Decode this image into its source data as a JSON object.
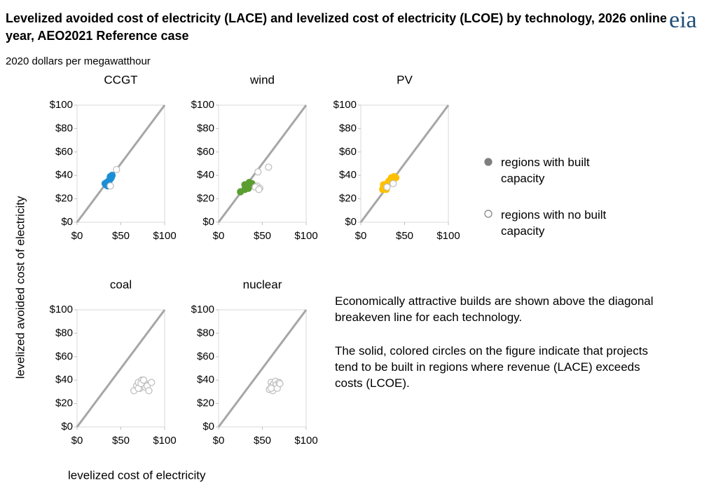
{
  "title": "Levelized avoided cost of electricity (LACE) and levelized cost of electricity (LCOE) by technology, 2026 online year, AEO2021 Reference case",
  "logo": "eia",
  "subtitle": "2020 dollars per megawatthour",
  "y_label": "levelized avoided cost of electricity",
  "x_label": "levelized cost of electricity",
  "legend": [
    {
      "label": "regions with built capacity",
      "color": "#7f7f7f",
      "filled": true
    },
    {
      "label": "regions with no built capacity",
      "color": "#7f7f7f",
      "filled": false
    }
  ],
  "notes": [
    "Economically attractive builds are shown above the diagonal breakeven line for each technology.",
    "The solid, colored circles on the figure indicate that projects tend to be built in regions where revenue (LACE) exceeds costs (LCOE)."
  ],
  "chart_data": [
    {
      "type": "scatter",
      "title": "CCGT",
      "xlim": [
        0,
        100
      ],
      "ylim": [
        0,
        100
      ],
      "xticks": [
        {
          "value": 0,
          "label": "$0"
        },
        {
          "value": 50,
          "label": "$50"
        },
        {
          "value": 100,
          "label": "$100"
        }
      ],
      "yticks": [
        {
          "value": 0,
          "label": "$0"
        },
        {
          "value": 20,
          "label": "$20"
        },
        {
          "value": 40,
          "label": "$40"
        },
        {
          "value": 60,
          "label": "$60"
        },
        {
          "value": 80,
          "label": "$80"
        },
        {
          "value": 100,
          "label": "$100"
        }
      ],
      "series": [
        {
          "color": "#1b8fd6",
          "filled": true,
          "x": [
            32,
            33,
            34,
            35,
            36,
            37,
            38,
            39,
            40,
            38,
            36,
            35
          ],
          "y": [
            33,
            32,
            34,
            33,
            35,
            36,
            37,
            38,
            40,
            39,
            32,
            31
          ]
        },
        {
          "color": "#c0c0c0",
          "filled": false,
          "x": [
            45,
            38
          ],
          "y": [
            45,
            31
          ]
        }
      ]
    },
    {
      "type": "scatter",
      "title": "wind",
      "xlim": [
        0,
        100
      ],
      "ylim": [
        0,
        100
      ],
      "xticks": [
        {
          "value": 0,
          "label": "$0"
        },
        {
          "value": 50,
          "label": "$50"
        },
        {
          "value": 100,
          "label": "$100"
        }
      ],
      "yticks": [
        {
          "value": 0,
          "label": "$0"
        },
        {
          "value": 20,
          "label": "$20"
        },
        {
          "value": 40,
          "label": "$40"
        },
        {
          "value": 60,
          "label": "$60"
        },
        {
          "value": 80,
          "label": "$80"
        },
        {
          "value": 100,
          "label": "$100"
        }
      ],
      "series": [
        {
          "color": "#5a9e32",
          "filled": true,
          "x": [
            25,
            30,
            32,
            35,
            38,
            30,
            34
          ],
          "y": [
            26,
            28,
            32,
            34,
            33,
            32,
            29
          ]
        },
        {
          "color": "#c0c0c0",
          "filled": false,
          "x": [
            57,
            45,
            44,
            47,
            42,
            46
          ],
          "y": [
            47,
            43,
            31,
            29,
            30,
            28
          ]
        }
      ]
    },
    {
      "type": "scatter",
      "title": "PV",
      "xlim": [
        0,
        100
      ],
      "ylim": [
        0,
        100
      ],
      "xticks": [
        {
          "value": 0,
          "label": "$0"
        },
        {
          "value": 50,
          "label": "$50"
        },
        {
          "value": 100,
          "label": "$100"
        }
      ],
      "yticks": [
        {
          "value": 0,
          "label": "$0"
        },
        {
          "value": 20,
          "label": "$20"
        },
        {
          "value": 40,
          "label": "$40"
        },
        {
          "value": 60,
          "label": "$60"
        },
        {
          "value": 80,
          "label": "$80"
        },
        {
          "value": 100,
          "label": "$100"
        }
      ],
      "series": [
        {
          "color": "#ffc000",
          "filled": true,
          "x": [
            25,
            26,
            27,
            28,
            30,
            32,
            35,
            38,
            40,
            26,
            29
          ],
          "y": [
            28,
            30,
            29,
            31,
            33,
            35,
            38,
            39,
            38,
            32,
            28
          ]
        },
        {
          "color": "#c0c0c0",
          "filled": false,
          "x": [
            37,
            30
          ],
          "y": [
            33,
            30
          ]
        }
      ]
    },
    {
      "type": "scatter",
      "title": "coal",
      "xlim": [
        0,
        100
      ],
      "ylim": [
        0,
        100
      ],
      "xticks": [
        {
          "value": 0,
          "label": "$0"
        },
        {
          "value": 50,
          "label": "$50"
        },
        {
          "value": 100,
          "label": "$100"
        }
      ],
      "yticks": [
        {
          "value": 0,
          "label": "$0"
        },
        {
          "value": 20,
          "label": "$20"
        },
        {
          "value": 40,
          "label": "$40"
        },
        {
          "value": 60,
          "label": "$60"
        },
        {
          "value": 80,
          "label": "$80"
        },
        {
          "value": 100,
          "label": "$100"
        }
      ],
      "series": [
        {
          "color": "#c0c0c0",
          "filled": false,
          "x": [
            65,
            68,
            70,
            72,
            74,
            75,
            77,
            78,
            80,
            82,
            85,
            70,
            73,
            76
          ],
          "y": [
            31,
            35,
            38,
            33,
            40,
            36,
            38,
            34,
            35,
            31,
            38,
            33,
            37,
            40
          ]
        }
      ]
    },
    {
      "type": "scatter",
      "title": "nuclear",
      "xlim": [
        0,
        100
      ],
      "ylim": [
        0,
        100
      ],
      "xticks": [
        {
          "value": 0,
          "label": "$0"
        },
        {
          "value": 50,
          "label": "$50"
        },
        {
          "value": 100,
          "label": "$100"
        }
      ],
      "yticks": [
        {
          "value": 0,
          "label": "$0"
        },
        {
          "value": 20,
          "label": "$20"
        },
        {
          "value": 40,
          "label": "$40"
        },
        {
          "value": 60,
          "label": "$60"
        },
        {
          "value": 80,
          "label": "$80"
        },
        {
          "value": 100,
          "label": "$100"
        }
      ],
      "series": [
        {
          "color": "#c0c0c0",
          "filled": false,
          "x": [
            58,
            60,
            61,
            62,
            63,
            64,
            65,
            66,
            67,
            69,
            70,
            60
          ],
          "y": [
            32,
            38,
            35,
            31,
            37,
            34,
            39,
            36,
            33,
            38,
            37,
            33
          ]
        }
      ]
    }
  ]
}
